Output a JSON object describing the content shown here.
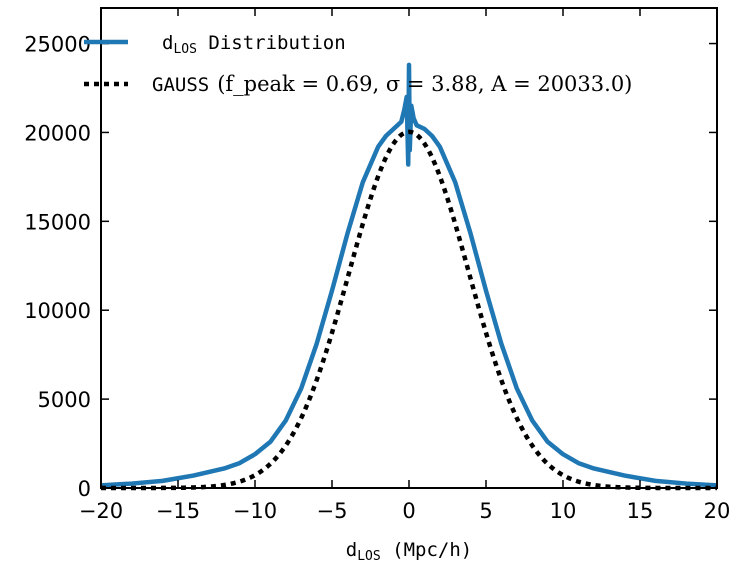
{
  "chart_data": {
    "type": "line",
    "xlabel_main": "d",
    "xlabel_sub": "LOS",
    "xlabel_unit": " (Mpc/h)",
    "xlim": [
      -20,
      20
    ],
    "ylim": [
      0,
      27000
    ],
    "x_ticks": [
      -20,
      -15,
      -10,
      -5,
      0,
      5,
      10,
      15,
      20
    ],
    "x_tick_labels": [
      "−20",
      "−15",
      "−10",
      "−5",
      "0",
      "5",
      "10",
      "15",
      "20"
    ],
    "y_ticks": [
      0,
      5000,
      10000,
      15000,
      20000,
      25000
    ],
    "y_tick_labels": [
      "0",
      "5000",
      "10000",
      "15000",
      "20000",
      "25000"
    ],
    "grid": false,
    "legend_position": "top-left",
    "series": [
      {
        "name_main": "d",
        "name_sub": "LOS",
        "name_rest": " Distribution",
        "color": "#1f77b4",
        "style": "solid",
        "x": [
          -20,
          -18,
          -16,
          -14,
          -12,
          -11,
          -10,
          -9,
          -8,
          -7,
          -6,
          -5,
          -4,
          -3,
          -2,
          -1.5,
          -1,
          -0.5,
          -0.3,
          -0.15,
          -0.05,
          0,
          0.05,
          0.15,
          0.3,
          0.5,
          1,
          1.5,
          2,
          3,
          4,
          5,
          6,
          7,
          8,
          9,
          10,
          11,
          12,
          14,
          16,
          18,
          20
        ],
        "y": [
          150,
          250,
          400,
          700,
          1100,
          1400,
          1900,
          2600,
          3800,
          5600,
          8100,
          11100,
          14300,
          17200,
          19200,
          19800,
          20200,
          20600,
          21300,
          22000,
          18200,
          23800,
          19000,
          21500,
          20800,
          20400,
          20200,
          19800,
          19200,
          17200,
          14300,
          11100,
          8100,
          5600,
          3800,
          2600,
          1900,
          1400,
          1100,
          700,
          400,
          250,
          150
        ]
      },
      {
        "name_main": "GAUSS",
        "name_rest": "",
        "params": "(f_peak = 0.69, σ = 3.88, A = 20033.0)",
        "color": "#000000",
        "style": "dotted",
        "gauss": {
          "amplitude": 20033.0,
          "sigma": 3.88,
          "mu": 0
        }
      }
    ]
  }
}
